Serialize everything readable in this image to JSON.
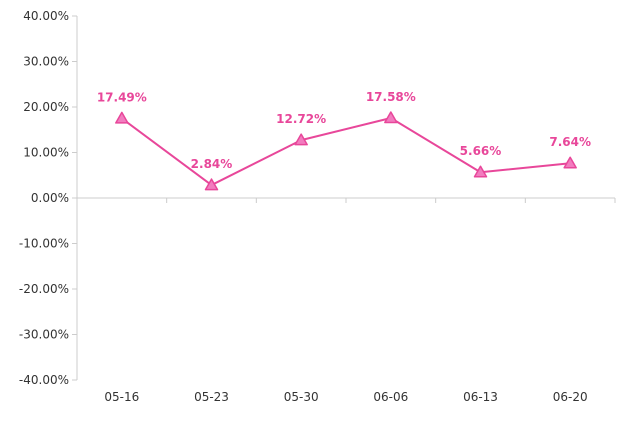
{
  "chart_data": {
    "type": "line",
    "title": "",
    "xlabel": "",
    "ylabel": "",
    "categories": [
      "05-16",
      "05-23",
      "05-30",
      "06-06",
      "06-13",
      "06-20"
    ],
    "series": [
      {
        "values": [
          17.49,
          2.84,
          12.72,
          17.58,
          5.66,
          7.64
        ],
        "labels": [
          "17.49%",
          "2.84%",
          "12.72%",
          "17.58%",
          "5.66%",
          "7.64%"
        ],
        "color": "#e8479a",
        "marker_fill": "#f27cbf",
        "marker": "triangle"
      }
    ],
    "ylim": [
      -40,
      40
    ],
    "yticks": [
      40,
      30,
      20,
      10,
      0,
      -10,
      -20,
      -30,
      -40
    ],
    "ytick_labels": [
      "40.00%",
      "30.00%",
      "20.00%",
      "10.00%",
      "0.00%",
      "-10.00%",
      "-20.00%",
      "-30.00%",
      "-40.00%"
    ],
    "grid": false,
    "legend": "none",
    "axis_color": "#cccccc"
  }
}
